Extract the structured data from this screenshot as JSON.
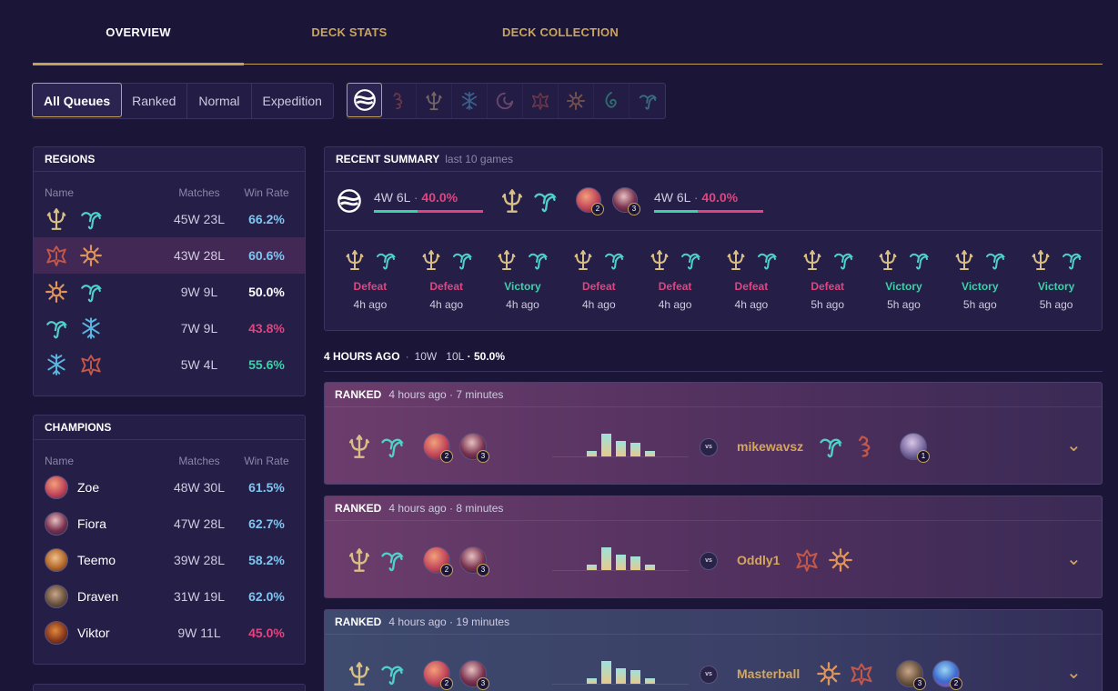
{
  "tabs": [
    {
      "label": "OVERVIEW",
      "active": true
    },
    {
      "label": "DECK STATS",
      "active": false
    },
    {
      "label": "DECK COLLECTION",
      "active": false
    }
  ],
  "queues": [
    "All Queues",
    "Ranked",
    "Normal",
    "Expedition"
  ],
  "region_filters": [
    "all-regions-icon",
    "noxus-icon",
    "targon-icon",
    "freljord-icon",
    "bilgewater-icon",
    "demacia-icon",
    "piltover-icon",
    "shadow-isles-icon",
    "ionia-icon"
  ],
  "regions_panel": {
    "title": "REGIONS",
    "headers": {
      "name": "Name",
      "matches": "Matches",
      "rate": "Win Rate"
    },
    "rows": [
      {
        "icons": [
          "targon-icon",
          "ionia-icon"
        ],
        "matches": "45W 23L",
        "rate": "66.2%"
      },
      {
        "icons": [
          "demacia-icon",
          "piltover-icon"
        ],
        "matches": "43W 28L",
        "rate": "60.6%"
      },
      {
        "icons": [
          "piltover-icon",
          "ionia-icon"
        ],
        "matches": "9W 9L",
        "rate": "50.0%"
      },
      {
        "icons": [
          "ionia-icon",
          "freljord-icon"
        ],
        "matches": "7W 9L",
        "rate": "43.8%"
      },
      {
        "icons": [
          "freljord-icon",
          "demacia-icon"
        ],
        "matches": "5W 4L",
        "rate": "55.6%"
      }
    ]
  },
  "champions_panel": {
    "title": "CHAMPIONS",
    "headers": {
      "name": "Name",
      "matches": "Matches",
      "rate": "Win Rate"
    },
    "rows": [
      {
        "name": "Zoe",
        "matches": "48W 30L",
        "rate": "61.5%",
        "color": "#c2465a"
      },
      {
        "name": "Fiora",
        "matches": "47W 28L",
        "rate": "62.7%",
        "color": "#7a3350"
      },
      {
        "name": "Teemo",
        "matches": "39W 28L",
        "rate": "58.2%",
        "color": "#b56a2d"
      },
      {
        "name": "Draven",
        "matches": "31W 19L",
        "rate": "62.0%",
        "color": "#6b5440"
      },
      {
        "name": "Viktor",
        "matches": "9W 11L",
        "rate": "45.0%",
        "color": "#8a3a1e"
      }
    ]
  },
  "summary": {
    "title": "RECENT SUMMARY",
    "subtitle": "last 10 games",
    "overall": {
      "record": "4W 6L",
      "sep": "·",
      "rate": "40.0%",
      "win_fraction": 0.4
    },
    "deck": {
      "record": "4W 6L",
      "sep": "·",
      "rate": "40.0%",
      "win_fraction": 0.4,
      "badges": [
        "2",
        "3"
      ]
    },
    "games": [
      {
        "result": "Defeat",
        "ago": "4h ago"
      },
      {
        "result": "Defeat",
        "ago": "4h ago"
      },
      {
        "result": "Victory",
        "ago": "4h ago"
      },
      {
        "result": "Defeat",
        "ago": "4h ago"
      },
      {
        "result": "Defeat",
        "ago": "4h ago"
      },
      {
        "result": "Defeat",
        "ago": "4h ago"
      },
      {
        "result": "Defeat",
        "ago": "5h ago"
      },
      {
        "result": "Victory",
        "ago": "5h ago"
      },
      {
        "result": "Victory",
        "ago": "5h ago"
      },
      {
        "result": "Victory",
        "ago": "5h ago"
      }
    ]
  },
  "group": {
    "label": "4 HOURS AGO",
    "sep": "·",
    "wins": "10W",
    "losses": "10L",
    "rate": "· 50.0%"
  },
  "matches": [
    {
      "queue": "RANKED",
      "time": "4 hours ago · 7 minutes",
      "vs": "vs",
      "opponent": "mikewavsz",
      "my_badges": [
        "2",
        "3"
      ],
      "opp_icons": [
        "ionia-icon",
        "noxus-icon"
      ],
      "opp_badges": [
        "1"
      ],
      "bars": [
        0.2,
        0.9,
        0.6,
        0.55,
        0.2
      ]
    },
    {
      "queue": "RANKED",
      "time": "4 hours ago · 8 minutes",
      "vs": "vs",
      "opponent": "Oddly1",
      "my_badges": [
        "2",
        "3"
      ],
      "opp_icons": [
        "demacia-icon",
        "piltover-icon"
      ],
      "opp_badges": [],
      "bars": [
        0.2,
        0.9,
        0.6,
        0.55,
        0.2
      ]
    },
    {
      "queue": "RANKED",
      "time": "4 hours ago · 19 minutes",
      "vs": "vs",
      "opponent": "Masterball",
      "my_badges": [
        "2",
        "3"
      ],
      "opp_icons": [
        "piltover-icon",
        "demacia-icon"
      ],
      "opp_badges": [
        "3",
        "2"
      ],
      "bars": [
        0.2,
        0.9,
        0.6,
        0.55,
        0.2
      ]
    }
  ],
  "colors": {
    "gold": "#c4a15a",
    "teal": "#3dd1a8",
    "pink": "#e0457f",
    "targon": "#d8bf85",
    "ionia": "#4fd0c8",
    "demacia": "#c2574a",
    "piltover": "#e0955a",
    "freljord": "#58b6e0"
  }
}
